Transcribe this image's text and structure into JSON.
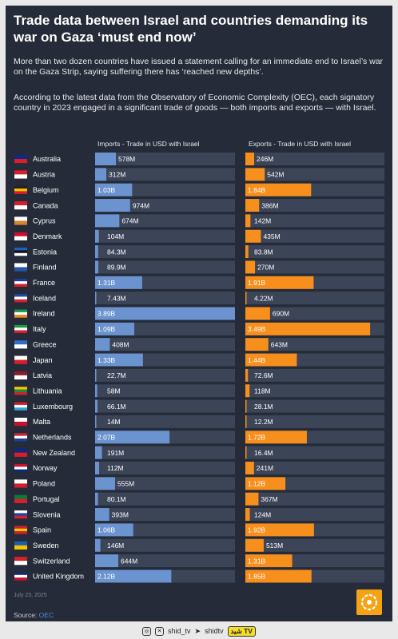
{
  "title": "Trade data between Israel and countries demanding its war on Gaza ‘must end now’",
  "intro": {
    "p1": "More than two dozen countries have issued a statement calling for an immediate end to Israel’s war on the Gaza Strip, saying suffering there has ‘reached new depths’.",
    "p2": "According to the latest data from the Observatory of Economic Complexity (OEC), each signatory country in 2023 engaged in a significant trade of goods — both imports and exports — with Israel."
  },
  "colors": {
    "imports_bar": "#6b93cf",
    "exports_bar": "#f78f1d",
    "track": "#3c4457",
    "background": "#252b38"
  },
  "chart_data": {
    "type": "bar",
    "orientation": "horizontal",
    "categories": [
      "Australia",
      "Austria",
      "Belgium",
      "Canada",
      "Cyprus",
      "Denmark",
      "Estonia",
      "Finland",
      "France",
      "Iceland",
      "Ireland",
      "Italy",
      "Greece",
      "Japan",
      "Latvia",
      "Lithuania",
      "Luxembourg",
      "Malta",
      "Netherlands",
      "New Zealand",
      "Norway",
      "Poland",
      "Portugal",
      "Slovenia",
      "Spain",
      "Sweden",
      "Switzerland",
      "United Kingdom"
    ],
    "series": [
      {
        "name": "Imports - Trade in USD with Israel",
        "values": [
          578,
          312,
          1030,
          974,
          674,
          104,
          84.3,
          89.9,
          1310,
          7.43,
          3890,
          1090,
          408,
          1330,
          22.7,
          58,
          66.1,
          14,
          2070,
          191,
          112,
          555,
          80.1,
          393,
          1060,
          146,
          644,
          2120
        ],
        "labels": [
          "578M",
          "312M",
          "1.03B",
          "974M",
          "674M",
          "104M",
          "84.3M",
          "89.9M",
          "1.31B",
          "7.43M",
          "3.89B",
          "1.09B",
          "408M",
          "1.33B",
          "22.7M",
          "58M",
          "66.1M",
          "14M",
          "2.07B",
          "191M",
          "112M",
          "555M",
          "80.1M",
          "393M",
          "1.06B",
          "146M",
          "644M",
          "2.12B"
        ]
      },
      {
        "name": "Exports - Trade in USD with Israel",
        "values": [
          246,
          542,
          1840,
          386,
          142,
          435,
          83.8,
          270,
          1910,
          4.22,
          690,
          3490,
          643,
          1440,
          72.6,
          118,
          28.1,
          12.2,
          1720,
          16.4,
          241,
          1120,
          367,
          124,
          1920,
          513,
          1310,
          1850
        ],
        "labels": [
          "246M",
          "542M",
          "1.84B",
          "386M",
          "142M",
          "435M",
          "83.8M",
          "270M",
          "1.91B",
          "4.22M",
          "690M",
          "3.49B",
          "643M",
          "1.44B",
          "72.6M",
          "118M",
          "28.1M",
          "12.2M",
          "1.72B",
          "16.4M",
          "241M",
          "1.12B",
          "367M",
          "124M",
          "1.92B",
          "513M",
          "1.31B",
          "1.85B"
        ]
      }
    ],
    "unit": "USD millions",
    "xlim_imports": [
      0,
      3890
    ],
    "xlim_exports": [
      0,
      3890
    ],
    "highlight_threshold": 1000
  },
  "source": {
    "label": "Source:",
    "name": "OEC"
  },
  "date_line": "July 23, 2025",
  "footer": {
    "instagram": "shid_tv",
    "telegram": "shidtv",
    "badge": "شید TV"
  }
}
